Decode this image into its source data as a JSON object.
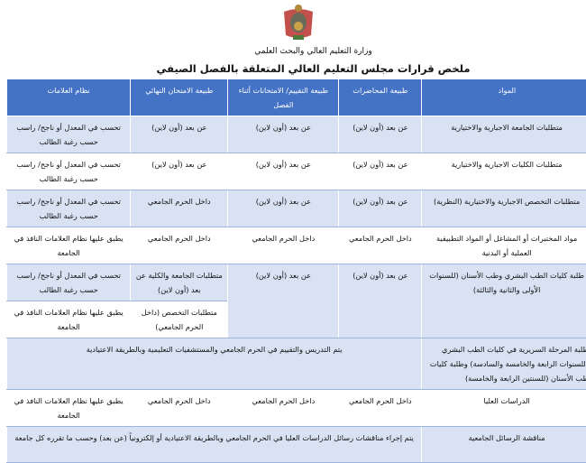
{
  "header": {
    "ministry": "وزارة التعليم العالي والبحث العلمي",
    "title": "ملخص قرارات مجلس التعليم العالي المتعلقة بالفصل الصيفي"
  },
  "table": {
    "columns": [
      "المواد",
      "طبيعة المحاضرات",
      "طبيعة التقييم/ الامتحانات أثناء الفصل",
      "طبيعة الامتحان النهائي",
      "نظام العلامات"
    ],
    "rows": [
      [
        "متطلبات الجامعة الاجبارية والاختيارية",
        "عن بعد (أون لاين)",
        "عن بعد (أون لاين)",
        "عن بعد (أون لاين)",
        "تحسب في المعدل أو ناجح/ راسب حسب رغبة الطالب"
      ],
      [
        "متطلبات الكليات الاجبارية والاختيارية",
        "عن بعد (أون لاين)",
        "عن بعد (أون لاين)",
        "عن بعد (أون لاين)",
        "تحسب في المعدل أو ناجح/ راسب حسب رغبة الطالب"
      ],
      [
        "متطلبات التخصص الاجبارية والاختيارية (النظرية)",
        "عن بعد (أون لاين)",
        "عن بعد (أون لاين)",
        "داخل الحرم الجامعي",
        "تحسب في المعدل أو ناجح/ راسب حسب رغبة الطالب"
      ],
      [
        "مواد المختبرات أو المشاغل أو المواد التطبيقية العملية أو البدنية",
        "داخل الحرم الجامعي",
        "داخل الحرم الجامعي",
        "داخل الحرم الجامعي",
        "يطبق عليها نظام العلامات النافذ في الجامعة"
      ],
      [
        "طلبة كليات الطب البشري وطب الأسنان (للسنوات الأولى والثانية والثالثة)",
        "عن بعد (أون لاين)",
        "عن بعد (أون لاين)",
        "متطلبات الجامعة والكلية عن بعد (أون لاين)",
        "تحسب في المعدل أو ناجح/ راسب حسب رغبة الطالب",
        "متطلبات التخصص (داخل الحرم الجامعي)",
        "يطبق عليها نظام العلامات النافذ في الجامعة"
      ],
      [
        "طلبة المرحلة السريرية في كليات الطب البشري (للسنوات الرابعة والخامسة والسادسة) وطلبة كليات طب الأسنان (للسنتين الرابعة والخامسة)",
        "يتم التدريس والتقييم في الحرم الجامعي والمستشفيات التعليمية وبالطريقة الاعتيادية"
      ],
      [
        "الدراسات العليا",
        "داخل الحرم الجامعي",
        "داخل الحرم الجامعي",
        "داخل الحرم الجامعي",
        "يطبق عليها نظام العلامات النافذ في الجامعة"
      ],
      [
        "مناقشة الرسائل الجامعية",
        "يتم إجراء مناقشات رسائل الدراسات العليا في الحرم الجامعي وبالطريقة الاعتيادية أو إلكترونياً (عن بعد) وحسب ما تقرره كل جامعة"
      ]
    ]
  },
  "colors": {
    "header_bg": "#4472c4",
    "row_alt": "#d9e2f3"
  },
  "icons": {
    "logo": "jordan-coat-of-arms"
  }
}
